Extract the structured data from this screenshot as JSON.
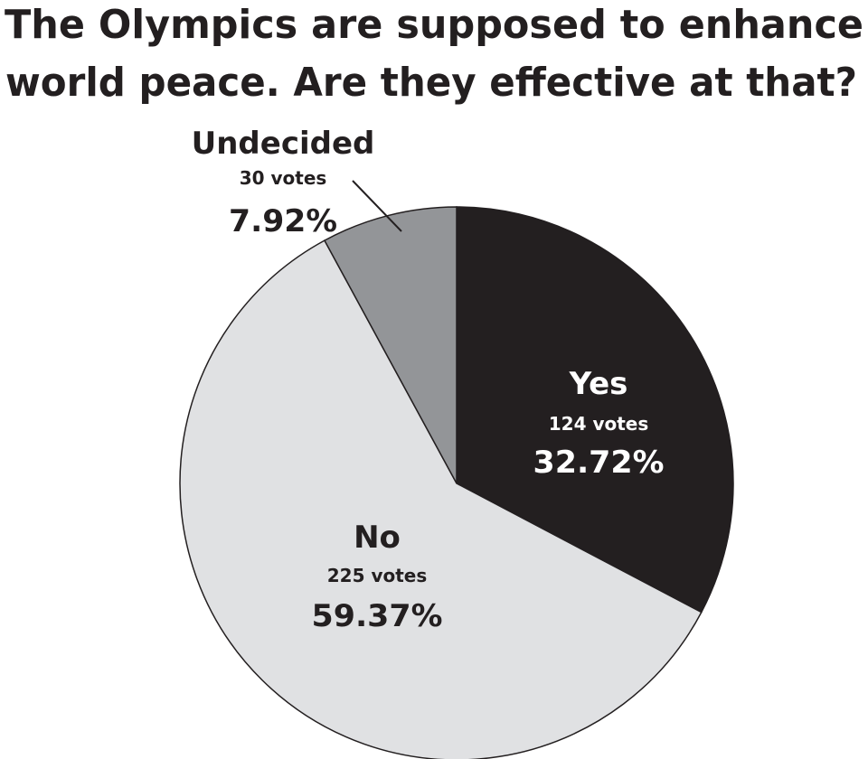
{
  "chart_data": {
    "type": "pie",
    "title_lines": [
      "The Olympics are supposed to enhance",
      "world peace. Are they effective at that?"
    ],
    "slices": [
      {
        "label": "Yes",
        "votes": 124,
        "votes_text": "124 votes",
        "percent": 32.72,
        "percent_text": "32.72%",
        "color": "#231f20",
        "text_color": "#ffffff"
      },
      {
        "label": "No",
        "votes": 225,
        "votes_text": "225 votes",
        "percent": 59.37,
        "percent_text": "59.37%",
        "color": "#e0e1e3",
        "text_color": "#231f20"
      },
      {
        "label": "Undecided",
        "votes": 30,
        "votes_text": "30 votes",
        "percent": 7.92,
        "percent_text": "7.92%",
        "color": "#939598",
        "text_color": "#231f20"
      }
    ]
  }
}
